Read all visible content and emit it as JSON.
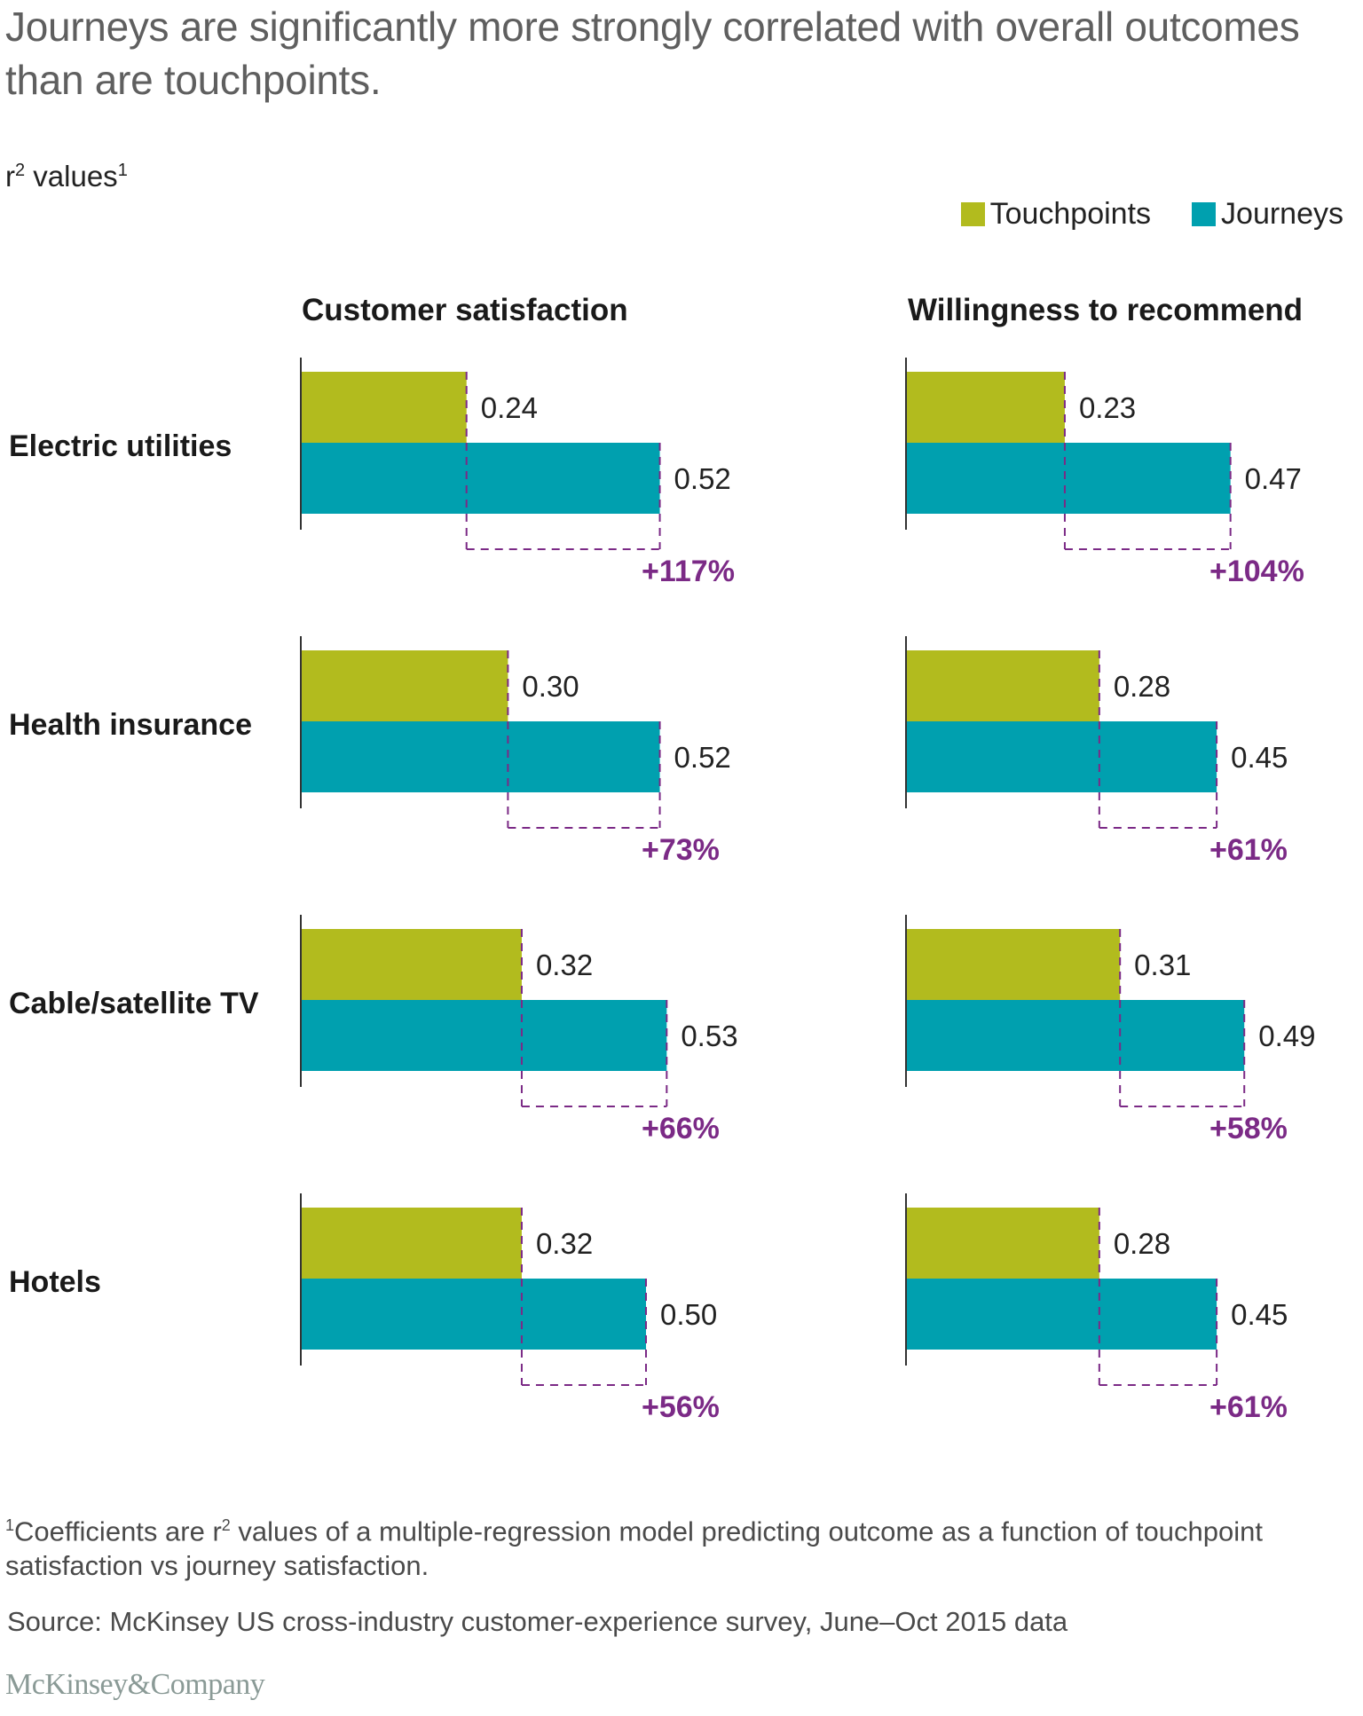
{
  "title": "Journeys are significantly more strongly correlated with overall outcomes than are touchpoints.",
  "units_label": "r",
  "units_label_sup": "2",
  "units_label_rest": " values",
  "units_label_note": "1",
  "footnote_marker": "1",
  "footnote_text_pre": "Coefficients are r",
  "footnote_text_sup": "2",
  "footnote_text_post": " values of a multiple-regression model predicting outcome as a function of touchpoint satisfaction vs journey satisfaction.",
  "source": "Source: McKinsey US cross-industry customer-experience survey, June–Oct 2015 data",
  "brand": "McKinsey&Company",
  "colors": {
    "touchpoints": "#b2bb1e",
    "journeys": "#00a0af",
    "delta": "#7b2a86",
    "axis": "#333333"
  },
  "chart_data": {
    "type": "bar",
    "orientation": "horizontal",
    "title": "Journeys are significantly more strongly correlated with overall outcomes than are touchpoints.",
    "xlabel": "",
    "ylabel": "r² values",
    "legend": {
      "position": "top-right",
      "entries": [
        "Touchpoints",
        "Journeys"
      ]
    },
    "categories": [
      "Electric utilities",
      "Health insurance",
      "Cable/satellite TV",
      "Hotels"
    ],
    "panels": [
      {
        "title": "Customer satisfaction",
        "series": [
          {
            "name": "Touchpoints",
            "values": [
              0.24,
              0.3,
              0.32,
              0.32
            ]
          },
          {
            "name": "Journeys",
            "values": [
              0.52,
              0.52,
              0.53,
              0.5
            ]
          }
        ],
        "value_labels": {
          "Touchpoints": [
            "0.24",
            "0.30",
            "0.32",
            "0.32"
          ],
          "Journeys": [
            "0.52",
            "0.52",
            "0.53",
            "0.50"
          ]
        },
        "deltas": [
          "+117%",
          "+73%",
          "+66%",
          "+56%"
        ]
      },
      {
        "title": "Willingness to recommend",
        "series": [
          {
            "name": "Touchpoints",
            "values": [
              0.23,
              0.28,
              0.31,
              0.28
            ]
          },
          {
            "name": "Journeys",
            "values": [
              0.47,
              0.45,
              0.49,
              0.45
            ]
          }
        ],
        "value_labels": {
          "Touchpoints": [
            "0.23",
            "0.28",
            "0.31",
            "0.28"
          ],
          "Journeys": [
            "0.47",
            "0.45",
            "0.49",
            "0.45"
          ]
        },
        "deltas": [
          "+104%",
          "+61%",
          "+58%",
          "+61%"
        ]
      }
    ],
    "xlim": [
      0,
      0.6
    ],
    "grid": false
  }
}
